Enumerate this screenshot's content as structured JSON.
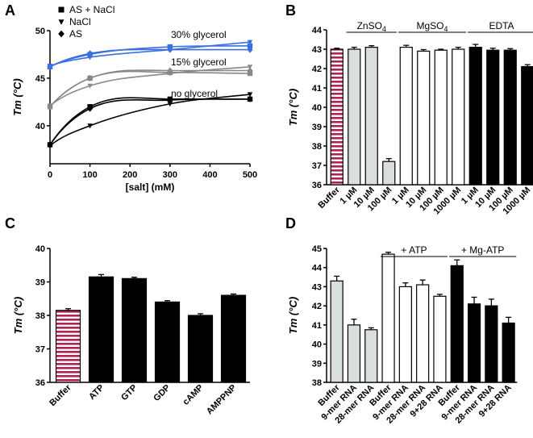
{
  "chart_data": [
    {
      "panel": "A",
      "type": "line",
      "xlabel": "[salt] (mM)",
      "ylabel": "Tm (°C)",
      "xlim": [
        0,
        500
      ],
      "ylim": [
        36,
        50
      ],
      "xticks": [
        0,
        100,
        200,
        300,
        400,
        500
      ],
      "yticks": [
        40,
        45,
        50
      ],
      "legend": [
        {
          "marker": "square",
          "label": "AS + NaCl"
        },
        {
          "marker": "triangle-down",
          "label": "NaCl"
        },
        {
          "marker": "diamond",
          "label": "AS"
        }
      ],
      "annotations": [
        "30% glycerol",
        "15% glycerol",
        "no glycerol"
      ],
      "x": [
        0,
        100,
        300,
        500
      ],
      "series": [
        {
          "group": "30% glycerol",
          "name": "AS + NaCl",
          "marker": "square",
          "color": "#3a6fe0",
          "values": [
            46.2,
            47.5,
            48.3,
            48.4
          ]
        },
        {
          "group": "30% glycerol",
          "name": "NaCl",
          "marker": "triangle-down",
          "color": "#3a6fe0",
          "values": [
            46.3,
            47.2,
            48.0,
            48.8
          ]
        },
        {
          "group": "30% glycerol",
          "name": "AS",
          "marker": "diamond",
          "color": "#3a6fe0",
          "values": [
            46.2,
            47.6,
            48.0,
            48.0
          ]
        },
        {
          "group": "15% glycerol",
          "name": "AS + NaCl",
          "marker": "square",
          "color": "#888888",
          "values": [
            42.0,
            45.0,
            45.6,
            45.5
          ]
        },
        {
          "group": "15% glycerol",
          "name": "NaCl",
          "marker": "triangle-down",
          "color": "#888888",
          "values": [
            42.1,
            44.2,
            45.5,
            46.2
          ]
        },
        {
          "group": "15% glycerol",
          "name": "AS",
          "marker": "diamond",
          "color": "#888888",
          "values": [
            42.0,
            45.0,
            45.8,
            45.8
          ]
        },
        {
          "group": "no glycerol",
          "name": "AS + NaCl",
          "marker": "square",
          "color": "#000000",
          "values": [
            38.0,
            42.0,
            42.8,
            42.8
          ]
        },
        {
          "group": "no glycerol",
          "name": "NaCl",
          "marker": "triangle-down",
          "color": "#000000",
          "values": [
            37.9,
            40.0,
            42.3,
            43.3
          ]
        },
        {
          "group": "no glycerol",
          "name": "AS",
          "marker": "diamond",
          "color": "#000000",
          "values": [
            38.0,
            41.8,
            42.7,
            42.8
          ]
        }
      ]
    },
    {
      "panel": "B",
      "type": "bar",
      "ylabel": "Tm (°C)",
      "ylim": [
        36,
        44
      ],
      "yticks": [
        36,
        37,
        38,
        39,
        40,
        41,
        42,
        43,
        44
      ],
      "groups": [
        {
          "label": "ZnSO4",
          "label_main": "ZnSO",
          "label_sub": "4",
          "start": 1,
          "end": 3
        },
        {
          "label": "MgSO4",
          "label_main": "MgSO",
          "label_sub": "4",
          "start": 4,
          "end": 7
        },
        {
          "label": "EDTA",
          "start": 8,
          "end": 11
        }
      ],
      "categories": [
        "Buffer",
        "1 µM",
        "10 µM",
        "100 µM",
        "1 µM",
        "10 µM",
        "100 µM",
        "1000 µM",
        "1 µM",
        "10 µM",
        "100 µM",
        "1000 µM"
      ],
      "values": [
        43.0,
        43.0,
        43.1,
        37.2,
        43.1,
        42.9,
        42.95,
        43.0,
        43.1,
        42.95,
        42.95,
        42.1
      ],
      "errors": [
        0.05,
        0.1,
        0.08,
        0.15,
        0.1,
        0.08,
        0.05,
        0.1,
        0.15,
        0.1,
        0.08,
        0.1
      ],
      "styles": [
        "striped",
        "gray",
        "gray",
        "gray",
        "white",
        "white",
        "white",
        "white",
        "black",
        "black",
        "black",
        "black"
      ]
    },
    {
      "panel": "C",
      "type": "bar",
      "ylabel": "Tm (°C)",
      "ylim": [
        36,
        40
      ],
      "yticks": [
        36,
        37,
        38,
        39,
        40
      ],
      "categories": [
        "Buffer",
        "ATP",
        "GTP",
        "GDP",
        "cAMP",
        "AMPPNP"
      ],
      "values": [
        38.15,
        39.15,
        39.1,
        38.4,
        38.0,
        38.6
      ],
      "errors": [
        0.05,
        0.07,
        0.04,
        0.04,
        0.05,
        0.04
      ],
      "styles": [
        "striped",
        "black",
        "black",
        "black",
        "black",
        "black"
      ]
    },
    {
      "panel": "D",
      "type": "bar",
      "ylabel": "Tm (°C)",
      "ylim": [
        38,
        45
      ],
      "yticks": [
        38,
        39,
        40,
        41,
        42,
        43,
        44,
        45
      ],
      "groups": [
        {
          "label": "+ ATP",
          "start": 3,
          "end": 6
        },
        {
          "label": "+ Mg-ATP",
          "start": 7,
          "end": 10
        }
      ],
      "categories": [
        "Buffer",
        "9-mer RNA",
        "28-mer RNA",
        "Buffer",
        "9-mer RNA",
        "28-mer RNA",
        "9+28 RNA",
        "Buffer",
        "9-mer RNA",
        "28-mer RNA",
        "9+28 RNA"
      ],
      "values": [
        43.3,
        41.0,
        40.75,
        44.7,
        43.0,
        43.1,
        42.5,
        44.1,
        42.1,
        42.0,
        41.1
      ],
      "errors": [
        0.25,
        0.3,
        0.1,
        0.1,
        0.2,
        0.25,
        0.1,
        0.3,
        0.35,
        0.35,
        0.3
      ],
      "styles": [
        "gray",
        "gray",
        "gray",
        "white",
        "white",
        "white",
        "white",
        "black",
        "black",
        "black",
        "black"
      ]
    }
  ],
  "colors": {
    "glycerol_30": "#3a6fe0",
    "glycerol_15": "#888888",
    "glycerol_0": "#000000",
    "bar_gray": "#d9dfdb",
    "stripe_a": "#b0244f",
    "stripe_b": "#ffffff"
  }
}
